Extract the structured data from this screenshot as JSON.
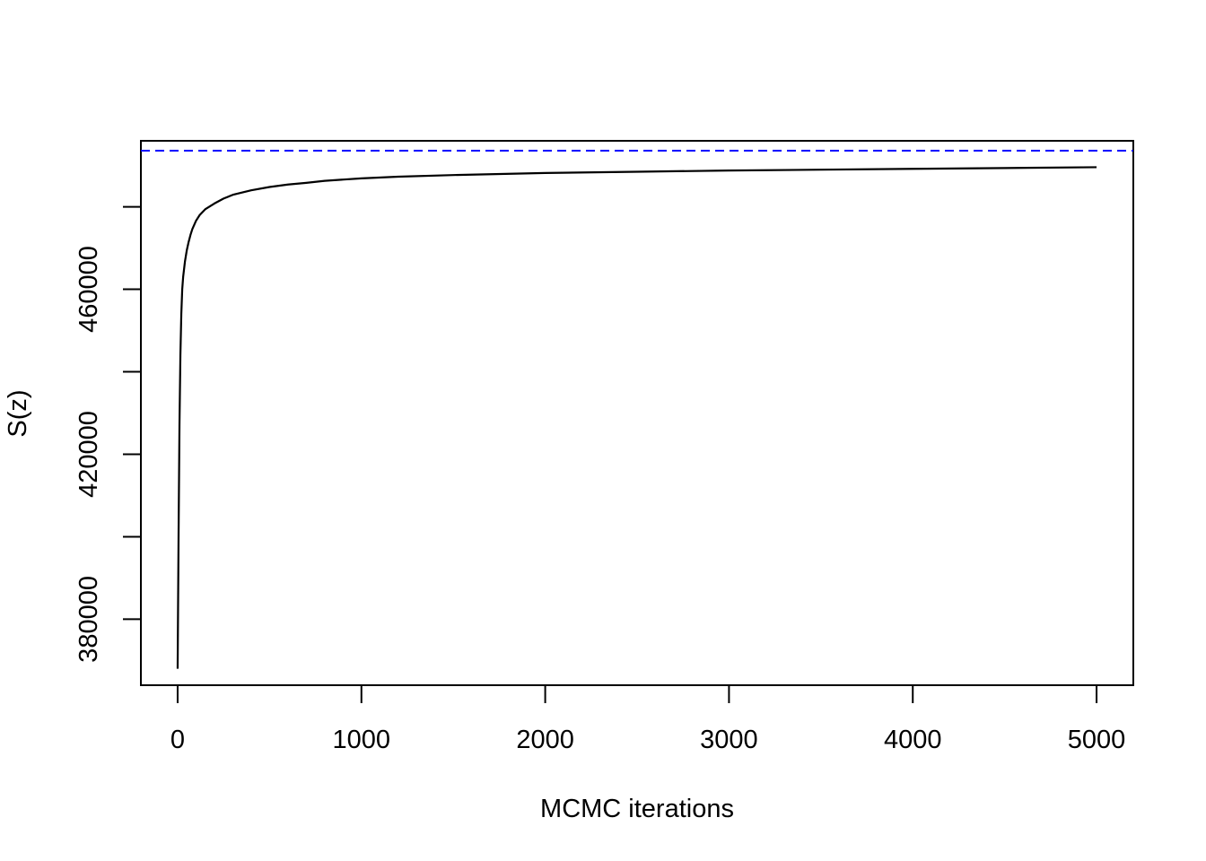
{
  "chart_data": {
    "type": "line",
    "title": "",
    "xlabel": "MCMC iterations",
    "ylabel": "S(z)",
    "xlim": [
      -200,
      5200
    ],
    "ylim": [
      364000,
      496000
    ],
    "x_ticks": [
      0,
      1000,
      2000,
      3000,
      4000,
      5000
    ],
    "x_tick_labels": [
      "0",
      "1000",
      "2000",
      "3000",
      "4000",
      "5000"
    ],
    "y_ticks": [
      380000,
      400000,
      420000,
      440000,
      460000,
      480000
    ],
    "y_tick_labels": [
      "380000",
      "",
      "420000",
      "",
      "460000",
      ""
    ],
    "grid": false,
    "reference_line": {
      "y": 493600,
      "style": "dashed",
      "color": "#0000ff"
    },
    "series": [
      {
        "color": "#000000",
        "x": [
          0,
          5,
          10,
          15,
          20,
          25,
          30,
          40,
          50,
          60,
          70,
          80,
          100,
          120,
          150,
          200,
          250,
          300,
          400,
          500,
          600,
          700,
          800,
          1000,
          1200,
          1500,
          2000,
          2500,
          3000,
          3500,
          4000,
          4500,
          5000
        ],
        "y": [
          368000,
          400000,
          427000,
          444000,
          454000,
          460000,
          463000,
          466800,
          469500,
          471500,
          473200,
          474600,
          476600,
          478000,
          479400,
          480800,
          482000,
          482900,
          484000,
          484800,
          485400,
          485800,
          486300,
          486900,
          487300,
          487700,
          488200,
          488500,
          488800,
          489000,
          489200,
          489400,
          489600
        ]
      }
    ]
  }
}
